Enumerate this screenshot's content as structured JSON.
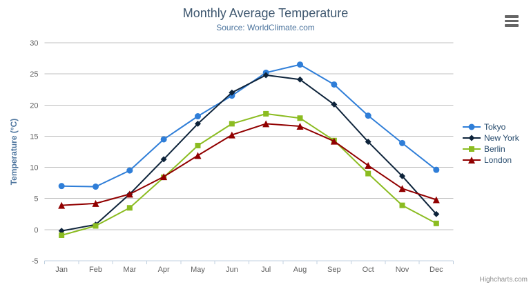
{
  "chart_data": {
    "type": "line",
    "title": "Monthly Average Temperature",
    "subtitle": "Source: WorldClimate.com",
    "xlabel": "",
    "ylabel": "Temperature (°C)",
    "ylim": [
      -5,
      30
    ],
    "ytick_step": 5,
    "yticks": [
      -5,
      0,
      5,
      10,
      15,
      20,
      25,
      30
    ],
    "grid": true,
    "legend_position": "right",
    "categories": [
      "Jan",
      "Feb",
      "Mar",
      "Apr",
      "May",
      "Jun",
      "Jul",
      "Aug",
      "Sep",
      "Oct",
      "Nov",
      "Dec"
    ],
    "series": [
      {
        "name": "Tokyo",
        "color": "#2f7ed8",
        "marker": "circle",
        "values": [
          7.0,
          6.9,
          9.5,
          14.5,
          18.2,
          21.5,
          25.2,
          26.5,
          23.3,
          18.3,
          13.9,
          9.6
        ]
      },
      {
        "name": "New York",
        "color": "#0d233a",
        "marker": "diamond",
        "values": [
          -0.2,
          0.8,
          5.7,
          11.3,
          17.0,
          22.0,
          24.8,
          24.1,
          20.1,
          14.1,
          8.6,
          2.5
        ]
      },
      {
        "name": "Berlin",
        "color": "#8bbc21",
        "marker": "square",
        "values": [
          -0.9,
          0.6,
          3.5,
          8.4,
          13.5,
          17.0,
          18.6,
          17.9,
          14.3,
          9.0,
          3.9,
          1.0
        ]
      },
      {
        "name": "London",
        "color": "#910000",
        "marker": "triangle",
        "values": [
          3.9,
          4.2,
          5.7,
          8.5,
          11.9,
          15.2,
          17.0,
          16.6,
          14.2,
          10.3,
          6.6,
          4.8
        ]
      }
    ],
    "style_colors": {
      "grid_line": "#C0C0C0",
      "axis_line": "#C0D0E0",
      "tick_label": "#606060",
      "axis_title": "#4d759e"
    }
  },
  "credits": "Highcharts.com",
  "export_menu": {
    "icon": "hamburger-menu-icon"
  }
}
